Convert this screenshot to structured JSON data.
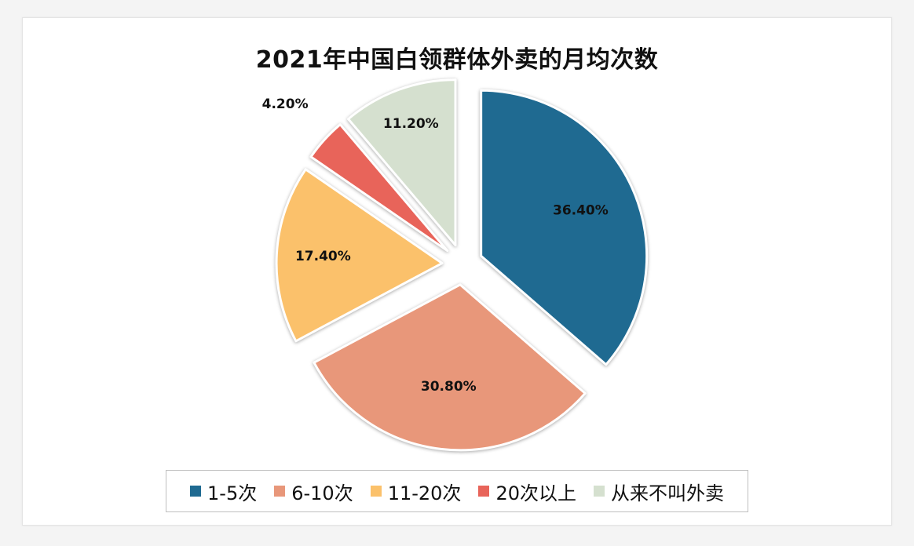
{
  "chart_data": {
    "type": "pie",
    "title": "2021年中国白领群体外卖的月均次数",
    "legend_position": "bottom",
    "categories": [
      "1-5次",
      "6-10次",
      "11-20次",
      "20次以上",
      "从来不叫外卖"
    ],
    "values": [
      36.4,
      30.8,
      17.4,
      4.2,
      11.2
    ],
    "value_labels": [
      "36.40%",
      "30.80%",
      "17.40%",
      "4.20%",
      "11.20%"
    ],
    "colors": [
      "#1f6a91",
      "#e8977a",
      "#fbc16b",
      "#e8645a",
      "#d5e0cf"
    ]
  }
}
